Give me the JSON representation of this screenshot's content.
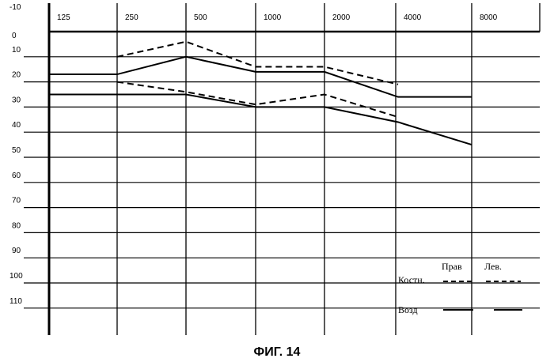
{
  "figure_caption": "ФИГ. 14",
  "chart_data": {
    "type": "line",
    "title": "",
    "xlabel": "",
    "ylabel": "",
    "x_categories": [
      "125",
      "250",
      "500",
      "1000",
      "2000",
      "4000",
      "8000"
    ],
    "y_ticks": [
      "-10",
      "0",
      "10",
      "20",
      "30",
      "40",
      "50",
      "60",
      "70",
      "80",
      "90",
      "100",
      "110"
    ],
    "ylim": [
      -10,
      115
    ],
    "y_inverted": true,
    "grid": true,
    "series": [
      {
        "ear": "right",
        "conduction": "bone",
        "style": "dashed",
        "values": [
          null,
          10,
          4,
          14,
          14,
          21,
          null
        ]
      },
      {
        "ear": "right",
        "conduction": "air",
        "style": "solid",
        "values": [
          17,
          17,
          10,
          16,
          16,
          26,
          26
        ]
      },
      {
        "ear": "left",
        "conduction": "bone",
        "style": "dashed",
        "values": [
          null,
          20,
          24,
          29,
          25,
          34,
          null
        ]
      },
      {
        "ear": "left",
        "conduction": "air",
        "style": "solid",
        "values": [
          25,
          25,
          25,
          30,
          30,
          36,
          45
        ]
      }
    ],
    "legend": {
      "position": "bottom-right",
      "col_right": "Прав",
      "col_left": "Лев.",
      "row_bone": "Костн.",
      "row_air": "Возд"
    }
  }
}
